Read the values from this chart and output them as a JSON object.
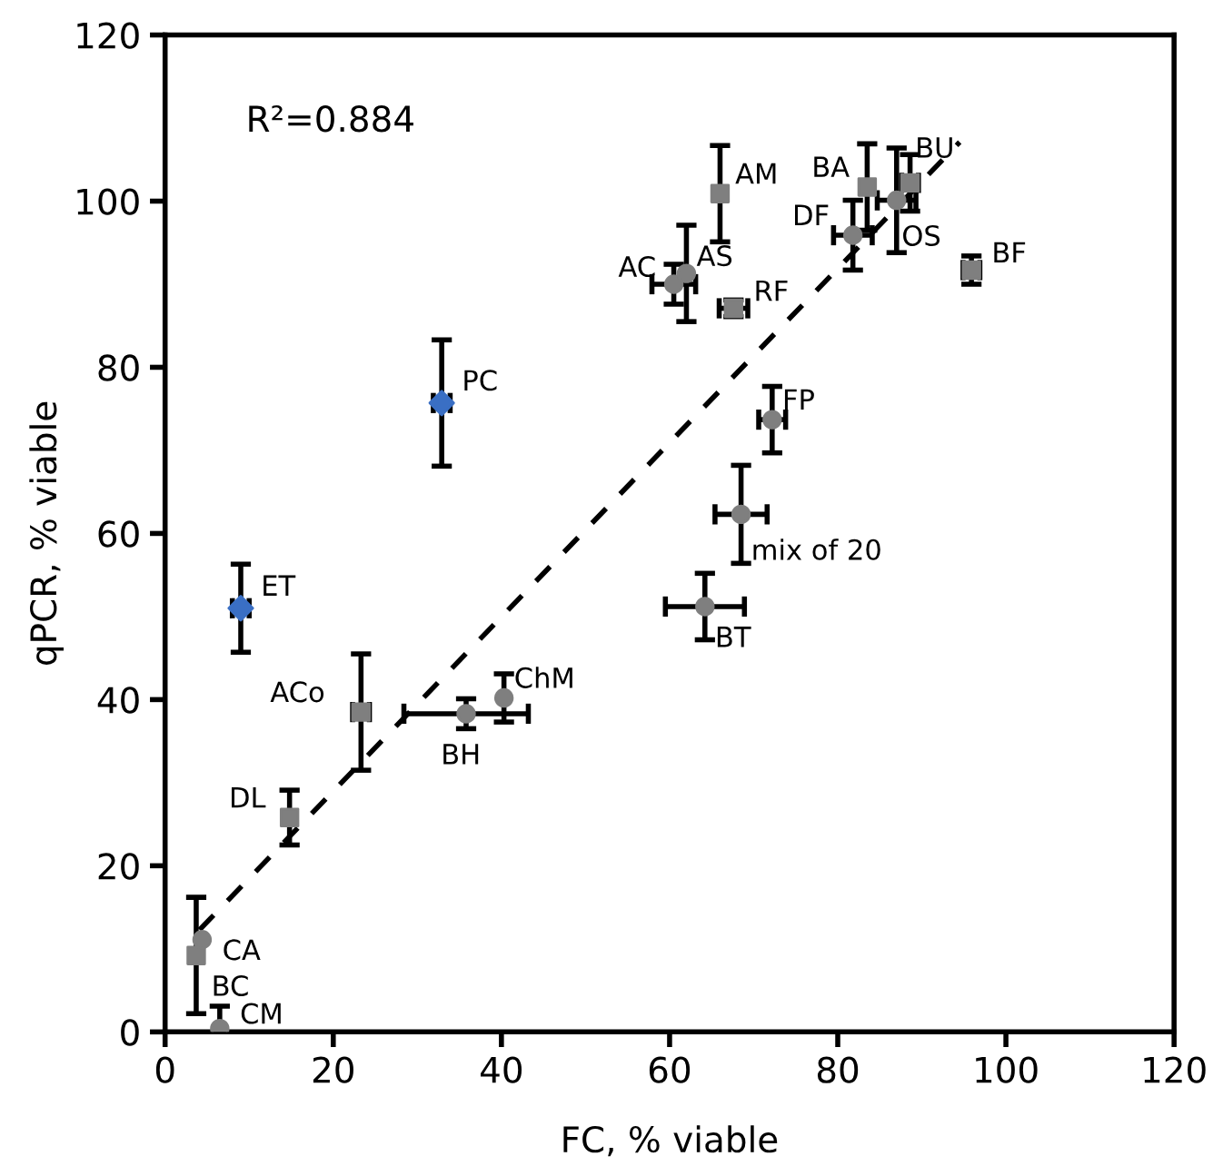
{
  "chart_data": {
    "type": "scatter",
    "xlabel": "FC, % viable",
    "ylabel": "qPCR, % viable",
    "xlim": [
      0,
      120
    ],
    "ylim": [
      0,
      120
    ],
    "xticks": [
      0,
      20,
      40,
      60,
      80,
      100,
      120
    ],
    "yticks": [
      0,
      20,
      40,
      60,
      80,
      100,
      120
    ],
    "grid": false,
    "legend": false,
    "series": [
      {
        "marker": "square",
        "color": "#7f7f7f",
        "x": [
          66.0,
          83.5,
          88.6,
          95.9,
          67.6,
          23.3,
          14.8,
          3.7
        ],
        "values": [
          100.9,
          101.7,
          102.2,
          91.7,
          87.1,
          38.5,
          25.8,
          9.2
        ],
        "errors": [
          5.8,
          5.2,
          3.4,
          1.7,
          1.0,
          7.0,
          3.3,
          7.0
        ],
        "xerrors": [
          null,
          null,
          1.0,
          1.0,
          1.7,
          1.0,
          null,
          null
        ]
      },
      {
        "marker": "circle",
        "color": "#7f7f7f",
        "x": [
          4.4,
          6.5,
          35.8,
          40.3,
          60.5,
          62.0,
          81.8,
          87.0,
          72.2,
          68.5,
          64.2
        ],
        "values": [
          11.1,
          0.4,
          38.3,
          40.2,
          90.0,
          91.3,
          95.9,
          100.1,
          73.7,
          62.3,
          51.2
        ],
        "errors": [
          null,
          2.7,
          1.8,
          2.9,
          2.4,
          5.8,
          4.2,
          6.3,
          4.0,
          5.9,
          4.0
        ],
        "xerrors": [
          null,
          null,
          7.4,
          null,
          2.6,
          null,
          2.3,
          2.3,
          1.6,
          3.1,
          4.7
        ]
      },
      {
        "marker": "diamond",
        "color": "#3a6fc4",
        "x": [
          9.0,
          32.9
        ],
        "values": [
          51.0,
          75.7
        ],
        "errors": [
          5.3,
          7.6
        ],
        "xerrors": [
          1.0,
          1.0
        ]
      },
      {
        "type": "line",
        "marker": "none",
        "line_style": "dashed",
        "color": "#000000",
        "x": [
          4.1,
          94.5
        ],
        "values": [
          12.3,
          107.1
        ]
      }
    ],
    "annotations": [
      "R²=0.884",
      {
        "text": "AM",
        "x": 66.0,
        "y": 100.9
      },
      {
        "text": "BA",
        "x": 83.5,
        "y": 101.7
      },
      {
        "text": "BU",
        "x": 88.6,
        "y": 102.2
      },
      {
        "text": "BF",
        "x": 95.9,
        "y": 91.7
      },
      {
        "text": "RF",
        "x": 67.6,
        "y": 87.1
      },
      {
        "text": "ACo",
        "x": 23.3,
        "y": 38.5
      },
      {
        "text": "DL",
        "x": 14.8,
        "y": 25.8
      },
      {
        "text": "BC",
        "x": 3.7,
        "y": 9.2
      },
      {
        "text": "CA",
        "x": 4.4,
        "y": 11.1
      },
      {
        "text": "CM",
        "x": 6.5,
        "y": 0.4
      },
      {
        "text": "BH",
        "x": 35.8,
        "y": 38.3
      },
      {
        "text": "ChM",
        "x": 40.3,
        "y": 40.2
      },
      {
        "text": "AC",
        "x": 60.5,
        "y": 90.0
      },
      {
        "text": "AS",
        "x": 62.0,
        "y": 91.3
      },
      {
        "text": "DF",
        "x": 81.8,
        "y": 95.9
      },
      {
        "text": "OS",
        "x": 87.0,
        "y": 100.1
      },
      {
        "text": "FP",
        "x": 72.2,
        "y": 73.7
      },
      {
        "text": "mix of 20",
        "x": 68.5,
        "y": 62.3
      },
      {
        "text": "BT",
        "x": 64.2,
        "y": 51.2
      },
      {
        "text": "ET",
        "x": 9.0,
        "y": 51.0
      },
      {
        "text": "PC",
        "x": 32.9,
        "y": 75.7
      }
    ]
  }
}
